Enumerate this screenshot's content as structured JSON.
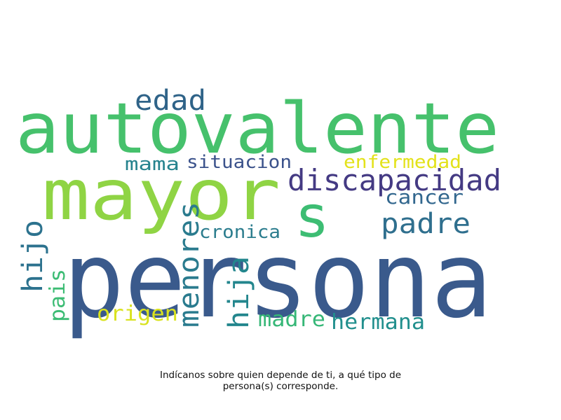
{
  "wordcloud": {
    "words": [
      {
        "text": "persona",
        "color": "#3a5a8c"
      },
      {
        "text": "autovalente",
        "color": "#46c16c"
      },
      {
        "text": "mayor",
        "color": "#8fd444"
      },
      {
        "text": "s",
        "color": "#3dbd73"
      },
      {
        "text": "discapacidad",
        "color": "#443a83"
      },
      {
        "text": "padre",
        "color": "#2f6f8e"
      },
      {
        "text": "edad",
        "color": "#2f6388"
      },
      {
        "text": "menores",
        "color": "#2a7b8e"
      },
      {
        "text": "hija",
        "color": "#23868d"
      },
      {
        "text": "hijo",
        "color": "#2c728e"
      },
      {
        "text": "hermana",
        "color": "#218f8d"
      },
      {
        "text": "madre",
        "color": "#36b777"
      },
      {
        "text": "origen",
        "color": "#d9e21e"
      },
      {
        "text": "pais",
        "color": "#3cbc74"
      },
      {
        "text": "situacion",
        "color": "#3b528b"
      },
      {
        "text": "mama",
        "color": "#26838e"
      },
      {
        "text": "enfermedad",
        "color": "#e3e21b"
      },
      {
        "text": "cancer",
        "color": "#32678e"
      },
      {
        "text": "cronica",
        "color": "#2c7d8e"
      }
    ]
  },
  "caption": {
    "line1": "Indícanos sobre quien depende de ti, a qué tipo de",
    "line2": "persona(s) corresponde."
  }
}
